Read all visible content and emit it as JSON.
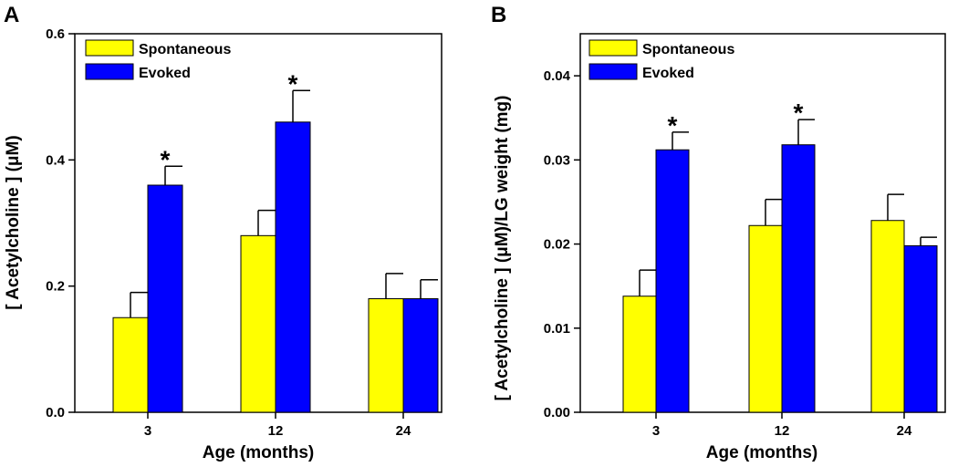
{
  "colors": {
    "spontaneous": "#FFFF00",
    "evoked": "#0000FF",
    "ink": "#000000"
  },
  "chart_data": [
    {
      "panel": "A",
      "type": "bar",
      "xlabel": "Age (months)",
      "ylabel": "[ Acetylcholine ] (μM)",
      "categories": [
        "3",
        "12",
        "24"
      ],
      "ylim": [
        0,
        0.6
      ],
      "yticks": [
        "0.0",
        "0.2",
        "0.4",
        "0.6"
      ],
      "ytick_values": [
        0,
        0.2,
        0.4,
        0.6
      ],
      "legend": {
        "position": "top-left"
      },
      "series": [
        {
          "name": "Spontaneous",
          "color_key": "spontaneous",
          "values": [
            0.15,
            0.28,
            0.18
          ],
          "errors": [
            0.04,
            0.04,
            0.04
          ]
        },
        {
          "name": "Evoked",
          "color_key": "evoked",
          "values": [
            0.36,
            0.46,
            0.18
          ],
          "errors": [
            0.03,
            0.05,
            0.03
          ]
        }
      ],
      "significance": [
        {
          "category": "3",
          "series": "Evoked",
          "label": "*"
        },
        {
          "category": "12",
          "series": "Evoked",
          "label": "*"
        }
      ]
    },
    {
      "panel": "B",
      "type": "bar",
      "xlabel": "Age (months)",
      "ylabel": "[ Acetylcholine ] (μM)/LG weight (mg)",
      "categories": [
        "3",
        "12",
        "24"
      ],
      "ylim": [
        0,
        0.045
      ],
      "yticks": [
        "0.00",
        "0.01",
        "0.02",
        "0.03",
        "0.04"
      ],
      "ytick_values": [
        0,
        0.01,
        0.02,
        0.03,
        0.04
      ],
      "legend": {
        "position": "top-left"
      },
      "series": [
        {
          "name": "Spontaneous",
          "color_key": "spontaneous",
          "values": [
            0.0138,
            0.0222,
            0.0228
          ],
          "errors": [
            0.0031,
            0.0031,
            0.0031
          ]
        },
        {
          "name": "Evoked",
          "color_key": "evoked",
          "values": [
            0.0312,
            0.0318,
            0.0198
          ],
          "errors": [
            0.0021,
            0.003,
            0.001
          ]
        }
      ],
      "significance": [
        {
          "category": "3",
          "series": "Evoked",
          "label": "*"
        },
        {
          "category": "12",
          "series": "Evoked",
          "label": "*"
        }
      ]
    }
  ]
}
